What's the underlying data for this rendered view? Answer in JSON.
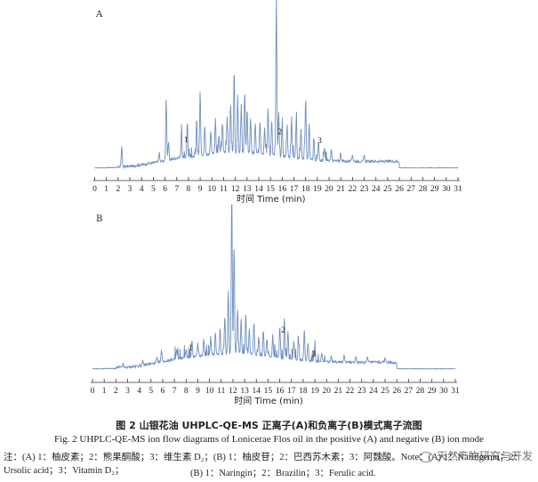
{
  "panels": [
    {
      "label": "A",
      "xlabel": "时间 Time (min)",
      "xticks": [
        "0",
        "1",
        "2",
        "3",
        "4",
        "5",
        "6",
        "7",
        "8",
        "9",
        "10",
        "11",
        "12",
        "13",
        "14",
        "15",
        "16",
        "17",
        "18",
        "19",
        "20",
        "21",
        "22",
        "23",
        "24",
        "25",
        "26",
        "27",
        "28",
        "29",
        "30",
        "31"
      ],
      "peak_labels": [
        {
          "text": "1",
          "t": 7.8
        },
        {
          "text": "2",
          "t": 15.8
        },
        {
          "text": "3",
          "t": 19.2
        }
      ]
    },
    {
      "label": "B",
      "xlabel": "时间 Time (min)",
      "xticks": [
        "0",
        "1",
        "2",
        "3",
        "4",
        "5",
        "6",
        "7",
        "8",
        "9",
        "10",
        "11",
        "12",
        "13",
        "14",
        "15",
        "16",
        "17",
        "18",
        "19",
        "20",
        "21",
        "22",
        "23",
        "24",
        "25",
        "26",
        "27",
        "28",
        "29",
        "30",
        "31"
      ],
      "peak_labels": [
        {
          "text": "1",
          "t": 8.4
        },
        {
          "text": "2",
          "t": 16.3
        },
        {
          "text": "3",
          "t": 18.9
        }
      ]
    }
  ],
  "caption": {
    "title": "图 2    山银花油 UHPLC-QE-MS 正离子(A)和负离子(B)模式离子流图",
    "english": "Fig. 2    UHPLC-QE-MS ion flow diagrams of Lonicerae Flos oil in the positive (A) and negative (B) ion mode",
    "note1": "注：(A) 1：柚皮素；2：熊果酮酸；3：维生素 D₂；(B) 1：柚皮苷；2：巴西苏木素；3：阿魏酸。Note：(A) 1：Naringenin；2：Ursolic acid；3：Vitamin D₂；",
    "note2": "(B) 1：Naringin；2：Brazilin；3：Ferulic acid."
  },
  "watermark": "天然产物研究与开发",
  "colors": {
    "trace": "#6f8fbf",
    "axis": "#333333",
    "text": "#222222"
  }
}
